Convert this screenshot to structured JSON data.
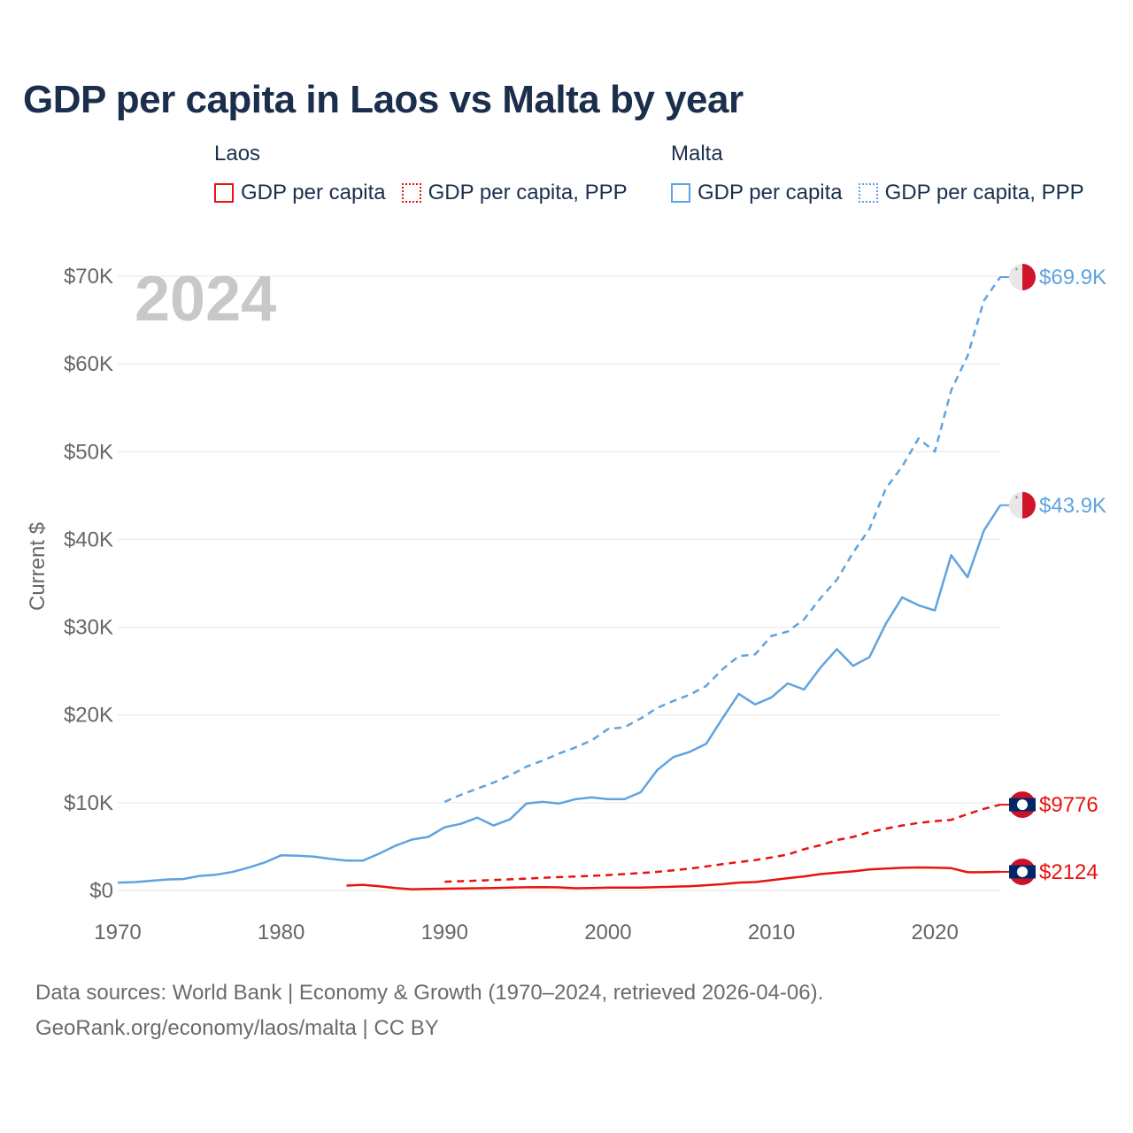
{
  "title": "GDP per capita in Laos vs Malta by year",
  "legend": {
    "groups": [
      {
        "country": "Laos",
        "color": "#e8130f",
        "items": [
          {
            "label": "GDP per capita",
            "style": "solid"
          },
          {
            "label": "GDP per capita, PPP",
            "style": "dotted"
          }
        ]
      },
      {
        "country": "Malta",
        "color": "#5fa3e0",
        "items": [
          {
            "label": "GDP per capita",
            "style": "solid"
          },
          {
            "label": "GDP per capita, PPP",
            "style": "dotted"
          }
        ]
      }
    ]
  },
  "footer": {
    "sources": "Data sources: World Bank | Economy & Growth (1970–2024, retrieved 2026-04-06).",
    "credit": "GeoRank.org/economy/laos/malta | CC BY"
  },
  "chart_data": {
    "type": "line",
    "title": "GDP per capita in Laos vs Malta by year",
    "year_watermark": "2024",
    "ylabel": "Current $",
    "xlabel": "",
    "xlim": [
      1970,
      2024
    ],
    "ylim": [
      0,
      70000
    ],
    "grid": true,
    "x_ticks": [
      1970,
      1980,
      1990,
      2000,
      2010,
      2020
    ],
    "y_ticks": [
      {
        "value": 0,
        "label": "$0"
      },
      {
        "value": 10000,
        "label": "$10K"
      },
      {
        "value": 20000,
        "label": "$20K"
      },
      {
        "value": 30000,
        "label": "$30K"
      },
      {
        "value": 40000,
        "label": "$40K"
      },
      {
        "value": 50000,
        "label": "$50K"
      },
      {
        "value": 60000,
        "label": "$60K"
      },
      {
        "value": 70000,
        "label": "$70K"
      }
    ],
    "series": [
      {
        "name": "Malta GDP per capita, PPP",
        "country": "Malta",
        "color": "#5fa3e0",
        "dash": "dashed",
        "end_label": "$69.9K",
        "flag": "malta",
        "x": [
          1990,
          1991,
          1992,
          1993,
          1994,
          1995,
          1996,
          1997,
          1998,
          1999,
          2000,
          2001,
          2002,
          2003,
          2004,
          2005,
          2006,
          2007,
          2008,
          2009,
          2010,
          2011,
          2012,
          2013,
          2014,
          2015,
          2016,
          2017,
          2018,
          2019,
          2020,
          2021,
          2022,
          2023,
          2024
        ],
        "y": [
          10100,
          10900,
          11600,
          12300,
          13100,
          14100,
          14800,
          15600,
          16300,
          17100,
          18400,
          18600,
          19600,
          20800,
          21600,
          22300,
          23300,
          25200,
          26700,
          26900,
          29000,
          29500,
          30900,
          33300,
          35400,
          38500,
          41200,
          45800,
          48300,
          51500,
          50000,
          57000,
          60900,
          67200,
          69900
        ]
      },
      {
        "name": "Malta GDP per capita",
        "country": "Malta",
        "color": "#5fa3e0",
        "dash": "solid",
        "end_label": "$43.9K",
        "flag": "malta",
        "x": [
          1970,
          1971,
          1972,
          1973,
          1974,
          1975,
          1976,
          1977,
          1978,
          1979,
          1980,
          1981,
          1982,
          1983,
          1984,
          1985,
          1986,
          1987,
          1988,
          1989,
          1990,
          1991,
          1992,
          1993,
          1994,
          1995,
          1996,
          1997,
          1998,
          1999,
          2000,
          2001,
          2002,
          2003,
          2004,
          2005,
          2006,
          2007,
          2008,
          2009,
          2010,
          2011,
          2012,
          2013,
          2014,
          2015,
          2016,
          2017,
          2018,
          2019,
          2020,
          2021,
          2022,
          2023,
          2024
        ],
        "y": [
          900,
          950,
          1100,
          1250,
          1300,
          1650,
          1800,
          2100,
          2600,
          3200,
          4000,
          3950,
          3850,
          3600,
          3400,
          3400,
          4200,
          5100,
          5800,
          6100,
          7200,
          7600,
          8300,
          7400,
          8100,
          9900,
          10100,
          9900,
          10400,
          10600,
          10400,
          10400,
          11200,
          13700,
          15200,
          15800,
          16700,
          19600,
          22400,
          21200,
          22000,
          23600,
          22900,
          25400,
          27500,
          25600,
          26600,
          30400,
          33400,
          32500,
          31900,
          38200,
          35700,
          41000,
          43900
        ]
      },
      {
        "name": "Laos GDP per capita, PPP",
        "country": "Laos",
        "color": "#e8130f",
        "dash": "dashed",
        "end_label": "$9776",
        "flag": "laos",
        "x": [
          1990,
          1991,
          1992,
          1993,
          1994,
          1995,
          1996,
          1997,
          1998,
          1999,
          2000,
          2001,
          2002,
          2003,
          2004,
          2005,
          2006,
          2007,
          2008,
          2009,
          2010,
          2011,
          2012,
          2013,
          2014,
          2015,
          2016,
          2017,
          2018,
          2019,
          2020,
          2021,
          2022,
          2023,
          2024
        ],
        "y": [
          1000,
          1060,
          1120,
          1190,
          1270,
          1350,
          1440,
          1520,
          1580,
          1660,
          1760,
          1870,
          1990,
          2120,
          2300,
          2490,
          2730,
          3000,
          3240,
          3460,
          3760,
          4100,
          4700,
          5150,
          5750,
          6100,
          6650,
          7050,
          7400,
          7700,
          7900,
          8050,
          8700,
          9300,
          9776
        ]
      },
      {
        "name": "Laos GDP per capita",
        "country": "Laos",
        "color": "#e8130f",
        "dash": "solid",
        "end_label": "$2124",
        "flag": "laos",
        "x": [
          1984,
          1985,
          1986,
          1987,
          1988,
          1989,
          1990,
          1991,
          1992,
          1993,
          1994,
          1995,
          1996,
          1997,
          1998,
          1999,
          2000,
          2001,
          2002,
          2003,
          2004,
          2005,
          2006,
          2007,
          2008,
          2009,
          2010,
          2011,
          2012,
          2013,
          2014,
          2015,
          2016,
          2017,
          2018,
          2019,
          2020,
          2021,
          2022,
          2023,
          2024
        ],
        "y": [
          550,
          650,
          480,
          280,
          140,
          170,
          200,
          230,
          250,
          280,
          320,
          360,
          380,
          350,
          250,
          280,
          330,
          330,
          330,
          370,
          430,
          480,
          600,
          720,
          900,
          960,
          1170,
          1400,
          1600,
          1870,
          2030,
          2180,
          2400,
          2500,
          2580,
          2620,
          2600,
          2540,
          2080,
          2080,
          2124
        ]
      }
    ]
  }
}
